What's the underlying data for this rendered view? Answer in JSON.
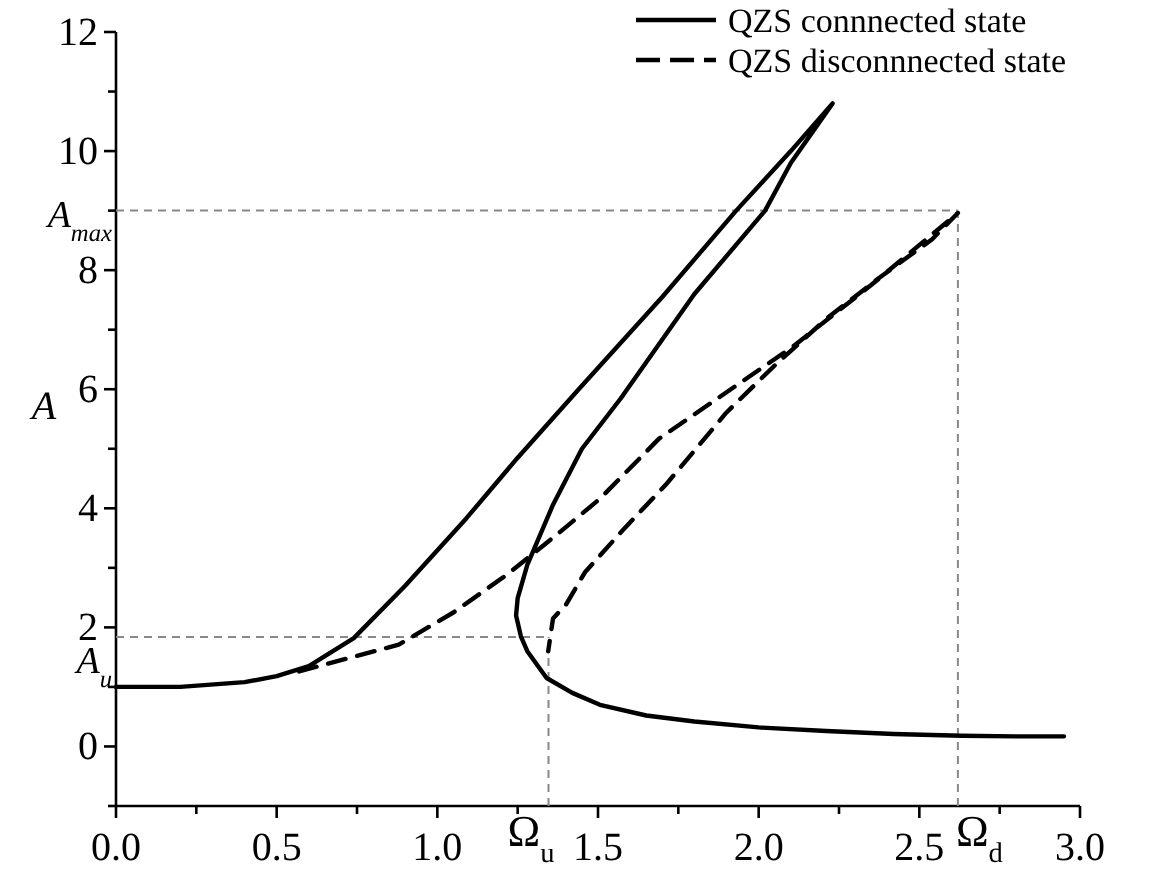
{
  "chart_data": {
    "type": "line",
    "ylabel": "A",
    "xlim": [
      0,
      3
    ],
    "ylim": [
      -1,
      12
    ],
    "xticks": [
      {
        "value": 0,
        "label": "0.0"
      },
      {
        "value": 0.25,
        "label": null
      },
      {
        "value": 0.5,
        "label": "0.5"
      },
      {
        "value": 0.75,
        "label": null
      },
      {
        "value": 1,
        "label": "1.0"
      },
      {
        "value": 1.25,
        "label": null
      },
      {
        "value": 1.5,
        "label": "1.5"
      },
      {
        "value": 1.75,
        "label": null
      },
      {
        "value": 2,
        "label": "2.0"
      },
      {
        "value": 2.25,
        "label": null
      },
      {
        "value": 2.5,
        "label": "2.5"
      },
      {
        "value": 2.75,
        "label": null
      },
      {
        "value": 3,
        "label": "3.0"
      }
    ],
    "yticks": [
      {
        "value": -1,
        "label": null
      },
      0,
      {
        "value": 1,
        "label": null
      },
      2,
      {
        "value": 3,
        "label": null
      },
      4,
      {
        "value": 5,
        "label": null
      },
      6,
      {
        "value": 7,
        "label": null
      },
      8,
      {
        "value": 9,
        "label": null
      },
      10,
      {
        "value": 11,
        "label": null
      },
      12
    ],
    "series": [
      {
        "name": "QZS connnected state",
        "color": "#000000",
        "line_style": "solid",
        "x": [
          0,
          0.2,
          0.4,
          0.5,
          0.6,
          0.74,
          0.9,
          1.09,
          1.25,
          1.44,
          1.7,
          1.93,
          2.1,
          2.23,
          2.1,
          2.02,
          1.8,
          1.57,
          1.45,
          1.36,
          1.28,
          1.25,
          1.245,
          1.26,
          1.28,
          1.34,
          1.42,
          1.506,
          1.65,
          1.8,
          2.0,
          2.21,
          2.42,
          2.63,
          2.8,
          2.95
        ],
        "values": [
          1.0,
          1.0,
          1.08,
          1.18,
          1.35,
          1.82,
          2.7,
          3.83,
          4.85,
          6.0,
          7.55,
          9.0,
          10.0,
          10.8,
          9.8,
          9.0,
          7.6,
          5.84,
          5.0,
          4.06,
          3.05,
          2.49,
          2.2,
          1.85,
          1.6,
          1.15,
          0.9,
          0.7,
          0.52,
          0.42,
          0.32,
          0.26,
          0.21,
          0.18,
          0.17,
          0.17
        ]
      },
      {
        "name": "QZS disconnnected state",
        "color": "#000000",
        "line_style": "dashed",
        "x": [
          0.57,
          0.7,
          0.88,
          1.05,
          1.215,
          1.37,
          1.506,
          1.69,
          1.9,
          2.11,
          2.35,
          2.62,
          2.54,
          2.37,
          2.21,
          2.05,
          1.9,
          1.71,
          1.58,
          1.46,
          1.4,
          1.36,
          1.345
        ],
        "values": [
          1.26,
          1.45,
          1.71,
          2.25,
          2.88,
          3.55,
          4.16,
          5.17,
          5.95,
          6.73,
          7.75,
          8.96,
          8.52,
          7.85,
          7.18,
          6.4,
          5.61,
          4.39,
          3.65,
          2.93,
          2.38,
          2.15,
          1.6
        ]
      }
    ],
    "ref_lines": [
      {
        "axis": "y",
        "value": 9,
        "label": "A$_{max}$",
        "color": "#888888",
        "line_style": "dashed"
      },
      {
        "axis": "y",
        "value": 1.84,
        "label": "A$_{u}$",
        "color": "#888888",
        "line_style": "dashed"
      },
      {
        "axis": "x",
        "value": 2.62,
        "label": "Ω$_{d}$",
        "color": "#888888",
        "line_style": "dashed"
      },
      {
        "axis": "x",
        "value": 1.346,
        "label": "Ω$_{u}$",
        "color": "#888888",
        "line_style": "dashed"
      }
    ],
    "legend": "top right",
    "grid": false
  }
}
